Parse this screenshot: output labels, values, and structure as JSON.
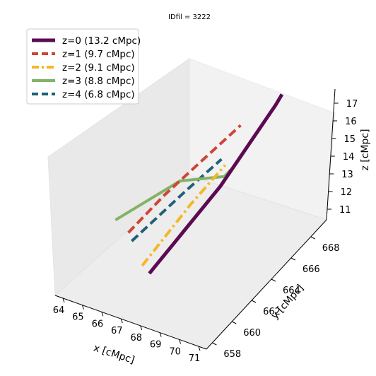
{
  "chart_data": {
    "type": "line",
    "projection": "3d",
    "title": "IDfil = 3222",
    "xlabel": "x [cMpc]",
    "ylabel": "y [cMpc]",
    "zlabel": "z [cMpc]",
    "xlim": [
      63.6,
      71.4
    ],
    "ylim": [
      657.4,
      669.6
    ],
    "zlim": [
      10.4,
      17.8
    ],
    "xticks": [
      "64",
      "65",
      "66",
      "67",
      "68",
      "69",
      "70",
      "71"
    ],
    "yticks": [
      "658",
      "660",
      "662",
      "664",
      "666",
      "668"
    ],
    "zticks": [
      "11",
      "12",
      "13",
      "14",
      "15",
      "16",
      "17"
    ],
    "grid": false,
    "legend_position": "top-left",
    "series": [
      {
        "name": "z=0 (13.2 cMpc)",
        "color": "#5c0a52",
        "style": "solid",
        "points": [
          [
            68.0,
            658.0,
            13.0
          ],
          [
            68.8,
            663.4,
            15.0
          ],
          [
            69.2,
            668.0,
            17.0
          ],
          [
            69.3,
            668.4,
            17.4
          ]
        ]
      },
      {
        "name": "z=1 (9.7 cMpc)",
        "color": "#cf4434",
        "style": "dashed",
        "points": [
          [
            66.9,
            657.8,
            15.0
          ],
          [
            67.3,
            660.6,
            15.6
          ],
          [
            67.8,
            664.2,
            16.0
          ],
          [
            68.1,
            666.7,
            16.2
          ]
        ]
      },
      {
        "name": "z=2 (9.1 cMpc)",
        "color": "#f5b824",
        "style": "dashdot",
        "points": [
          [
            67.8,
            657.6,
            13.6
          ],
          [
            68.3,
            661.3,
            15.0
          ],
          [
            68.7,
            664.0,
            15.8
          ]
        ]
      },
      {
        "name": "z=3 (8.8 cMpc)",
        "color": "#82b366",
        "style": "solid",
        "points": [
          [
            66.3,
            657.6,
            15.6
          ],
          [
            67.4,
            662.0,
            15.6
          ],
          [
            68.6,
            664.2,
            15.0
          ],
          [
            68.9,
            664.2,
            15.5
          ]
        ]
      },
      {
        "name": "z=4 (6.8 cMpc)",
        "color": "#1f6178",
        "style": "dashed",
        "points": [
          [
            67.1,
            657.8,
            14.6
          ],
          [
            67.8,
            661.8,
            15.3
          ],
          [
            68.4,
            664.2,
            15.9
          ]
        ]
      }
    ]
  }
}
